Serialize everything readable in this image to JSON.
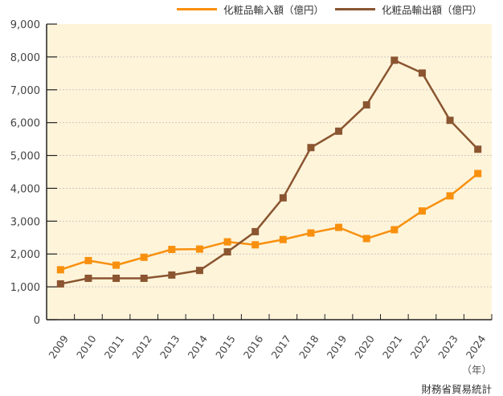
{
  "legend": {
    "import_label": "化粧品輸入額（億円）",
    "export_label": "化粧品輸出額（億円）"
  },
  "unit_label": "（年）",
  "source_label": "財務省貿易統計",
  "colors": {
    "import": "#F8900E",
    "export": "#8A5530",
    "plot_bg": "#FEF4DA",
    "grid": "#cfc6c0",
    "axis": "#222222"
  },
  "chart_data": {
    "type": "line",
    "title": "",
    "xlabel": "（年）",
    "ylabel": "",
    "ylim": [
      0,
      9000
    ],
    "yticks": [
      0,
      1000,
      2000,
      3000,
      4000,
      5000,
      6000,
      7000,
      8000,
      9000
    ],
    "ytick_labels": [
      "0",
      "1,000",
      "2,000",
      "3,000",
      "4,000",
      "5,000",
      "6,000",
      "7,000",
      "8,000",
      "9,000"
    ],
    "grid": "horizontal dotted",
    "legend_position": "top-right",
    "categories": [
      "2009",
      "2010",
      "2011",
      "2012",
      "2013",
      "2014",
      "2015",
      "2016",
      "2017",
      "2018",
      "2019",
      "2020",
      "2021",
      "2022",
      "2023",
      "2024"
    ],
    "series": [
      {
        "name": "化粧品輸入額（億円）",
        "color": "#F8900E",
        "values": [
          1520,
          1800,
          1660,
          1900,
          2140,
          2150,
          2370,
          2280,
          2440,
          2640,
          2810,
          2470,
          2740,
          3310,
          3770,
          4450
        ]
      },
      {
        "name": "化粧品輸出額（億円）",
        "color": "#8A5530",
        "values": [
          1090,
          1260,
          1260,
          1260,
          1360,
          1500,
          2065,
          2680,
          3710,
          5240,
          5740,
          6540,
          7900,
          7510,
          6070,
          5190
        ]
      }
    ],
    "source": "財務省貿易統計"
  }
}
